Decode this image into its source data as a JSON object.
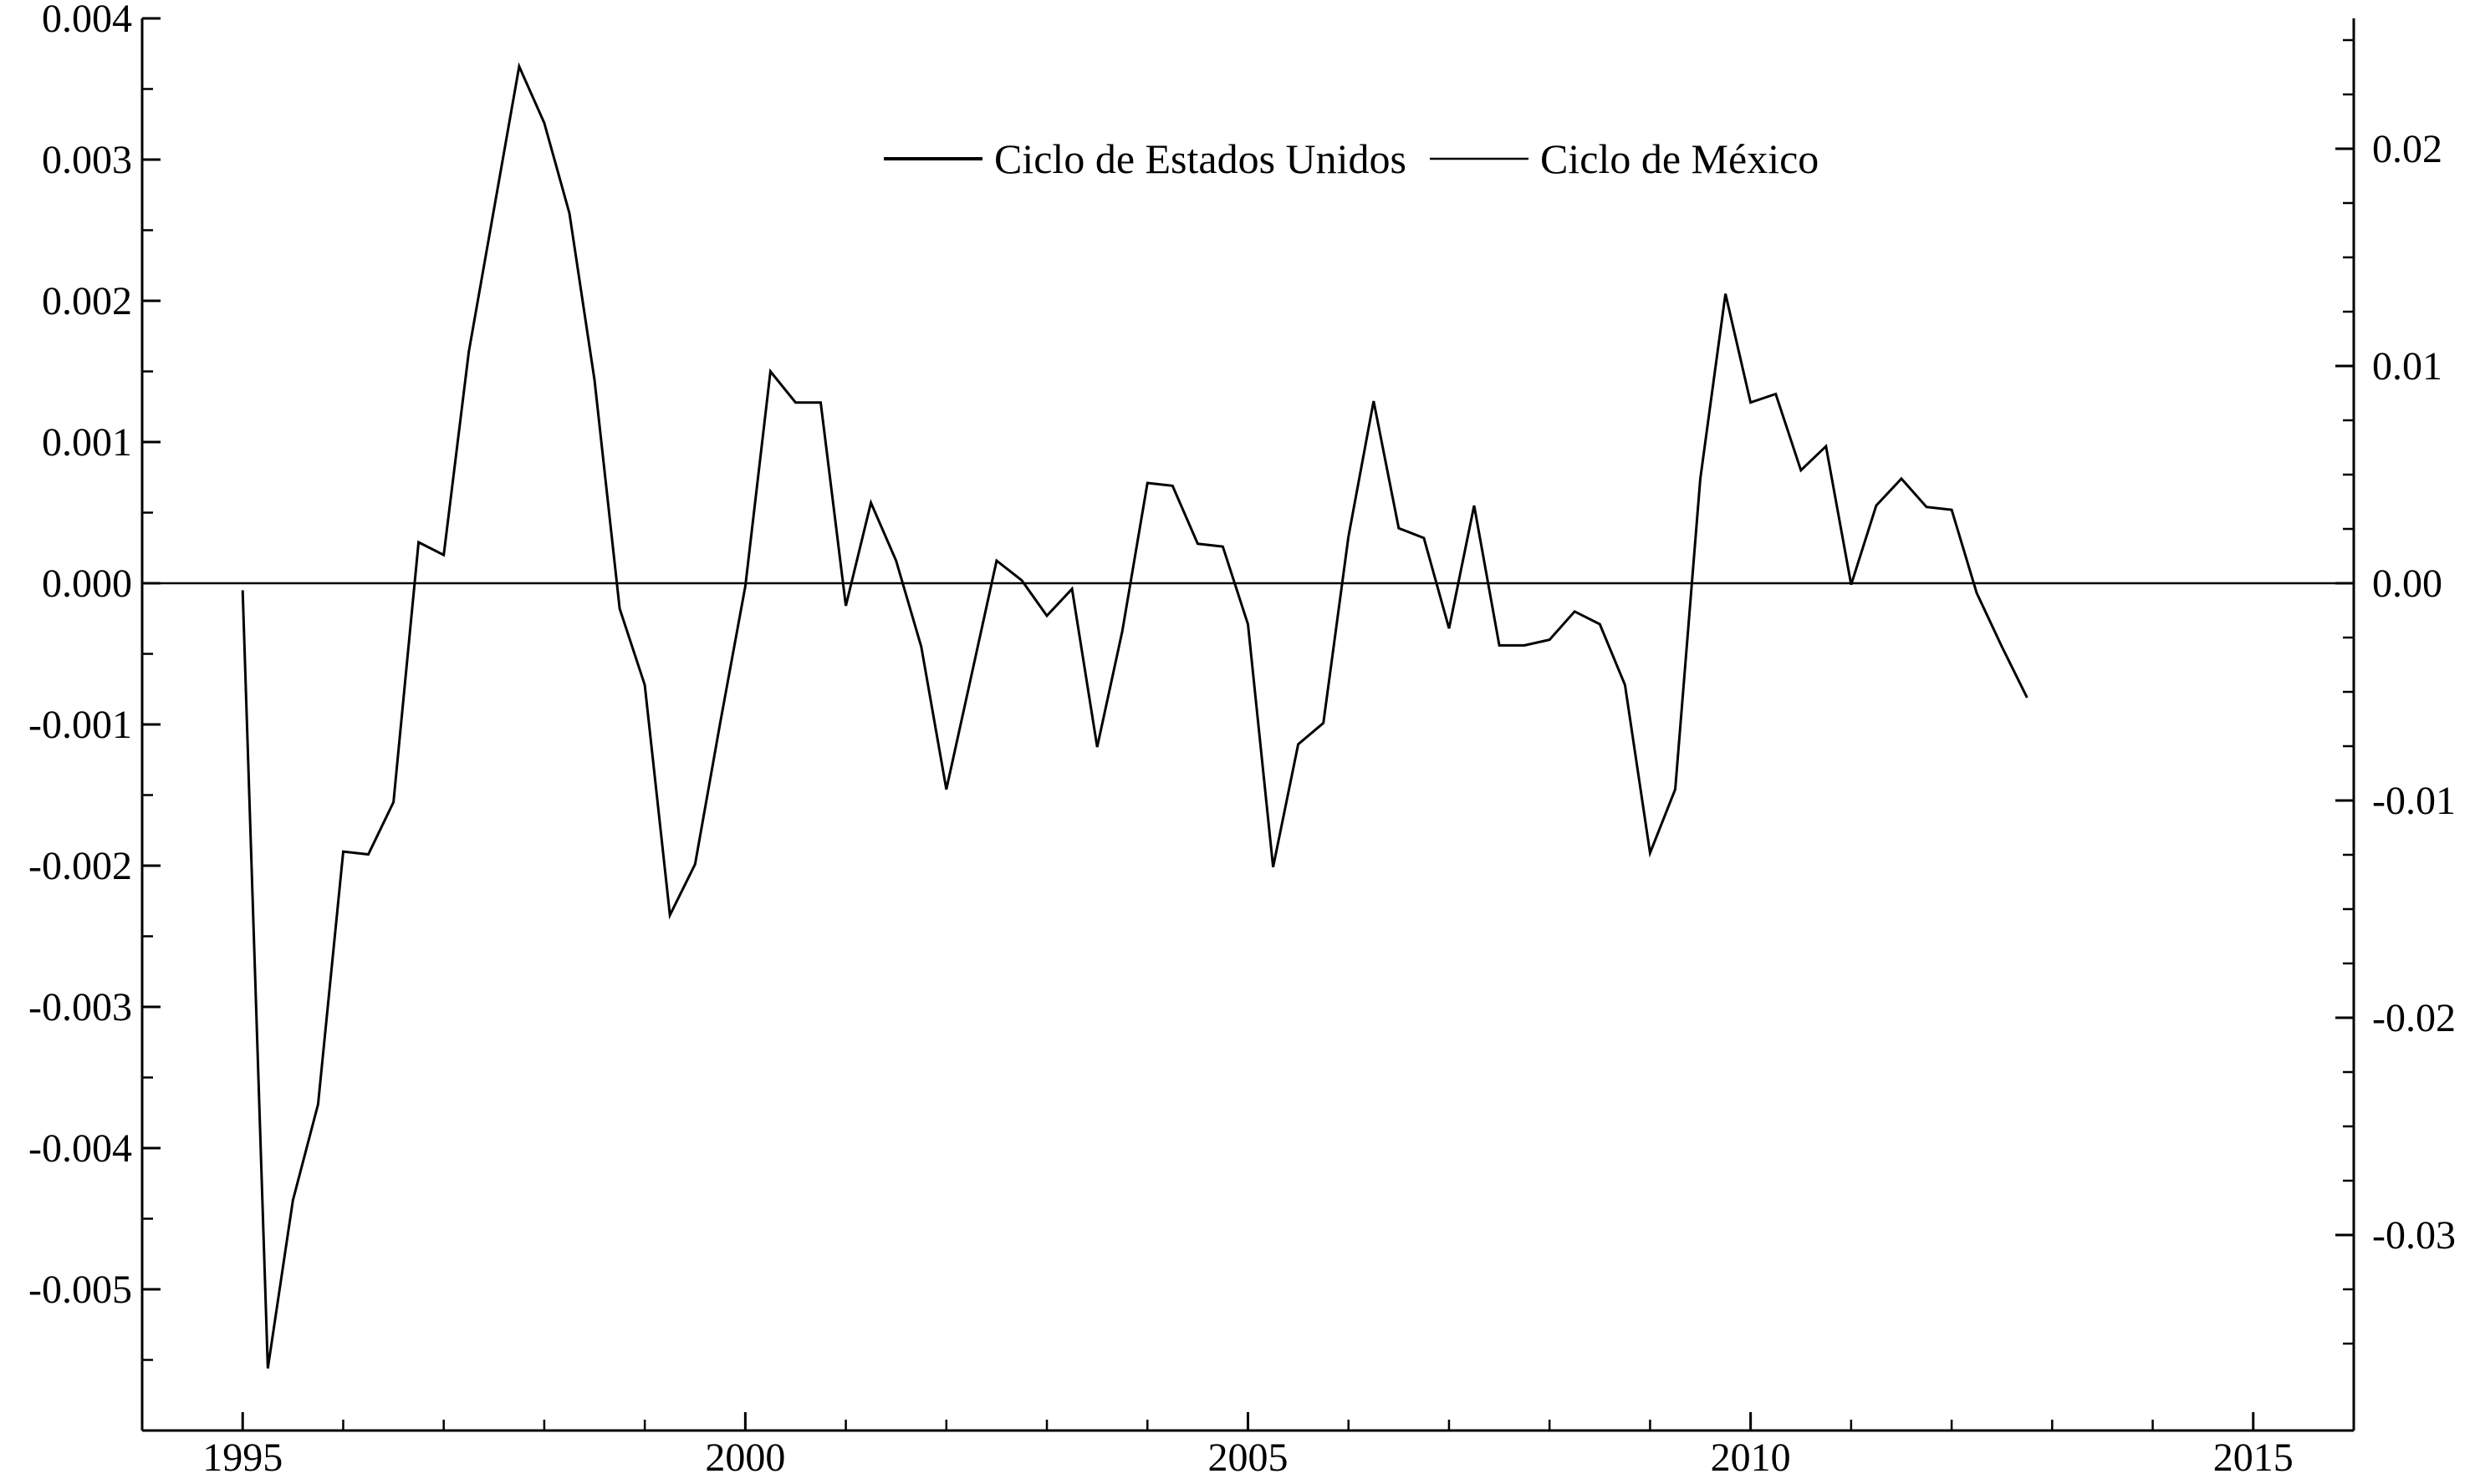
{
  "chart_data": {
    "type": "line",
    "title": "",
    "xlabel": "",
    "ylabel": "",
    "x_ticks": [
      "1995",
      "2000",
      "2005",
      "2010",
      "2015"
    ],
    "xlim": [
      1994,
      2016
    ],
    "y_left_ticks": [
      "0.004",
      "0.003",
      "0.002",
      "0.001",
      "0.000",
      "-0.001",
      "-0.002",
      "-0.003",
      "-0.004",
      "-0.005"
    ],
    "y_left_lim": [
      -0.006,
      0.004
    ],
    "y_right_ticks": [
      "0.02",
      "0.01",
      "0.00",
      "-0.01",
      "-0.02",
      "-0.03"
    ],
    "y_right_lim": [
      -0.039,
      0.026
    ],
    "grid": false,
    "zero_line": true,
    "legend": {
      "placement": "top-center",
      "entries": [
        "Ciclo de Estados Unidos",
        "Ciclo de México"
      ]
    },
    "colors": {
      "line": "#000000",
      "axis": "#000000"
    },
    "series": [
      {
        "name": "Ciclo de Estados Unidos",
        "x": [
          1995.0,
          1995.25,
          1995.5,
          1995.75,
          1996.0,
          1996.25,
          1996.5,
          1996.75,
          1997.0,
          1997.25,
          1997.5,
          1997.75,
          1998.0,
          1998.25,
          1998.5,
          1998.75,
          1999.0,
          1999.25,
          1999.5,
          1999.75,
          2000.0,
          2000.25,
          2000.5,
          2000.75,
          2001.0,
          2001.25,
          2001.5,
          2001.75,
          2002.0,
          2002.25,
          2002.5,
          2002.75,
          2003.0,
          2003.25,
          2003.5,
          2003.75,
          2004.0,
          2004.25,
          2004.5,
          2004.75,
          2005.0,
          2005.25,
          2005.5,
          2005.75,
          2006.0,
          2006.25,
          2006.5,
          2006.75,
          2007.0,
          2007.25,
          2007.5,
          2007.75,
          2008.0,
          2008.25,
          2008.5,
          2008.75,
          2009.0,
          2009.25,
          2009.5,
          2009.75,
          2010.0,
          2010.25,
          2010.5,
          2010.75,
          2011.0,
          2011.25,
          2011.5,
          2011.75,
          2012.0,
          2012.25,
          2012.5,
          2012.75
        ],
        "values": [
          -5e-05,
          -0.00556,
          -0.00437,
          -0.00369,
          -0.0019,
          -0.00192,
          -0.00155,
          0.00029,
          0.0002,
          0.00164,
          0.00265,
          0.00366,
          0.00326,
          0.00262,
          0.00144,
          -0.00018,
          -0.00072,
          -0.00235,
          -0.00199,
          -0.00099,
          -2e-05,
          0.0015,
          0.00128,
          0.00128,
          -0.00016,
          0.00057,
          0.00016,
          -0.00045,
          -0.00146,
          -0.00065,
          0.00016,
          2e-05,
          -0.00023,
          -4e-05,
          -0.00116,
          -0.00034,
          0.00071,
          0.00069,
          0.00028,
          0.00026,
          -0.00029,
          -0.00201,
          -0.00114,
          -0.00099,
          0.00033,
          0.00129,
          0.00039,
          0.00032,
          -0.00032,
          0.00055,
          -0.00044,
          -0.00044,
          -0.0004,
          -0.0002,
          -0.00029,
          -0.00072,
          -0.00191,
          -0.00146,
          0.00074,
          0.00205,
          0.00128,
          0.00134,
          0.0008,
          0.00097,
          -1e-05,
          0.00055,
          0.00074,
          0.00054,
          0.00052,
          -7e-05,
          -0.00045,
          -0.00081
        ]
      }
    ]
  }
}
